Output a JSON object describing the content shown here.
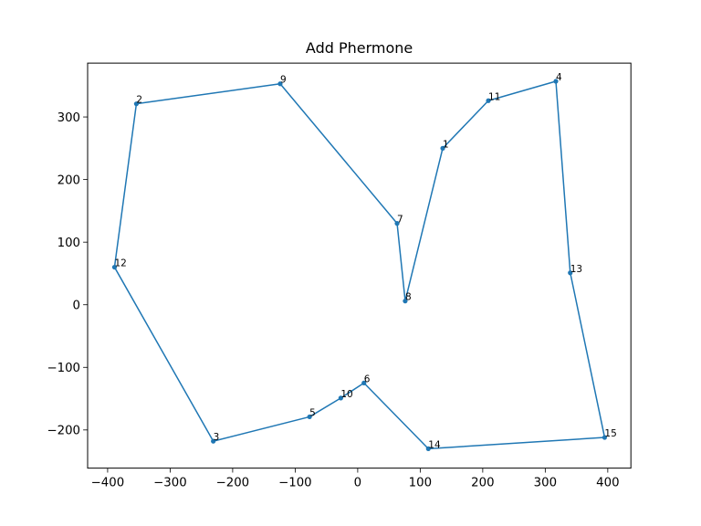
{
  "chart_data": {
    "type": "line",
    "title": "Add Phermone",
    "xlabel": "",
    "ylabel": "",
    "xlim": [
      -432,
      437
    ],
    "ylim": [
      -261,
      386
    ],
    "xticks": [
      -400,
      -300,
      -200,
      -100,
      0,
      100,
      200,
      300,
      400
    ],
    "yticks": [
      -200,
      -100,
      0,
      100,
      200,
      300
    ],
    "grid": false,
    "legend": "none",
    "colors": {
      "series": "#1f77b4"
    },
    "points": [
      {
        "id": "1",
        "x": 136,
        "y": 250
      },
      {
        "id": "2",
        "x": -354,
        "y": 321
      },
      {
        "id": "3",
        "x": -231,
        "y": -218
      },
      {
        "id": "4",
        "x": 317,
        "y": 357
      },
      {
        "id": "5",
        "x": -77,
        "y": -179
      },
      {
        "id": "6",
        "x": 10,
        "y": -125
      },
      {
        "id": "7",
        "x": 63,
        "y": 130
      },
      {
        "id": "8",
        "x": 76,
        "y": 6
      },
      {
        "id": "9",
        "x": -124,
        "y": 353
      },
      {
        "id": "10",
        "x": -27,
        "y": -149
      },
      {
        "id": "11",
        "x": 209,
        "y": 326
      },
      {
        "id": "12",
        "x": -389,
        "y": 60
      },
      {
        "id": "13",
        "x": 340,
        "y": 51
      },
      {
        "id": "14",
        "x": 113,
        "y": -230
      },
      {
        "id": "15",
        "x": 395,
        "y": -212
      }
    ],
    "path_order": [
      "2",
      "9",
      "7",
      "8",
      "1",
      "11",
      "4",
      "13",
      "15",
      "14",
      "6",
      "10",
      "5",
      "3",
      "12",
      "2"
    ]
  }
}
